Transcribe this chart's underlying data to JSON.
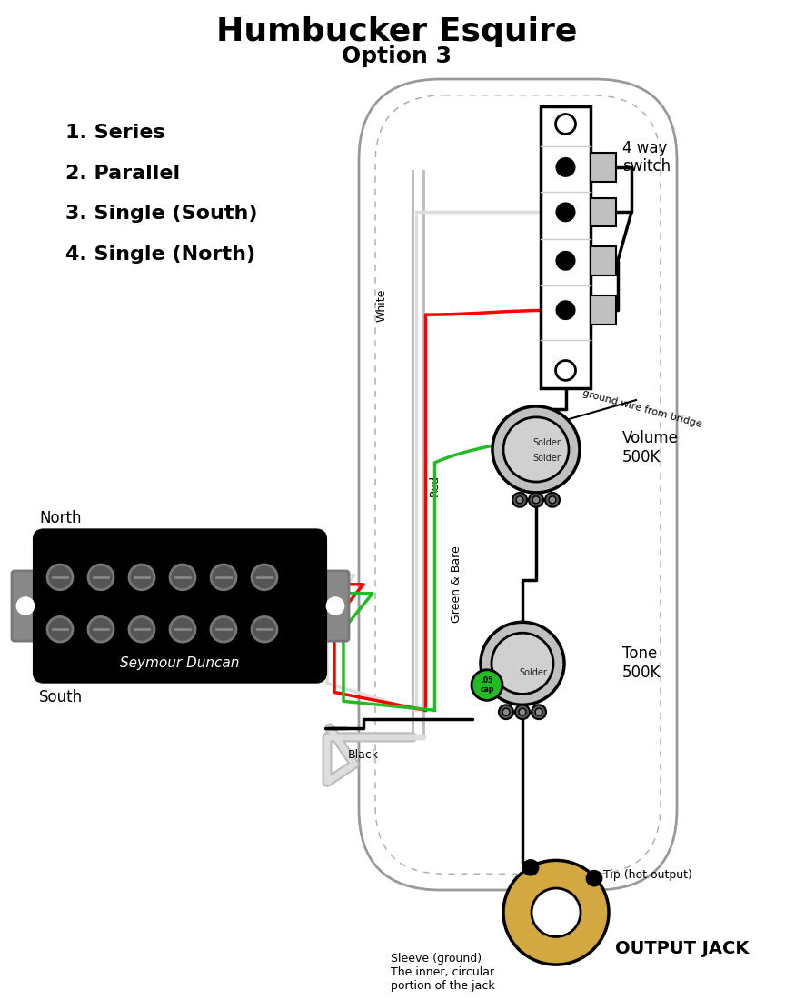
{
  "title": "Humbucker Esquire",
  "subtitle": "Option 3",
  "bg_color": "#ffffff",
  "list_items": [
    "1. Series",
    "2. Parallel",
    "3. Single (South)",
    "4. Single (North)"
  ],
  "label_4way": "4 way\nswitch",
  "label_volume": "Volume\n500K",
  "label_tone": "Tone\n500K",
  "label_output": "OUTPUT JACK",
  "label_north": "North",
  "label_south": "South",
  "label_brand": "Seymour Duncan",
  "label_white": "White",
  "label_red": "Red",
  "label_green": "Green & Bare",
  "label_black": "Black",
  "label_tip": "Tip (hot output)",
  "label_sleeve": "Sleeve (ground)\nThe inner, circular\nportion of the jack",
  "label_ground": "ground wire from bridge",
  "label_solder": "Solder",
  "label_cap": ".05\ncap",
  "title_fs": 26,
  "subtitle_fs": 18,
  "list_fs": 16,
  "label_fs": 12,
  "wire_lw": 2.5
}
